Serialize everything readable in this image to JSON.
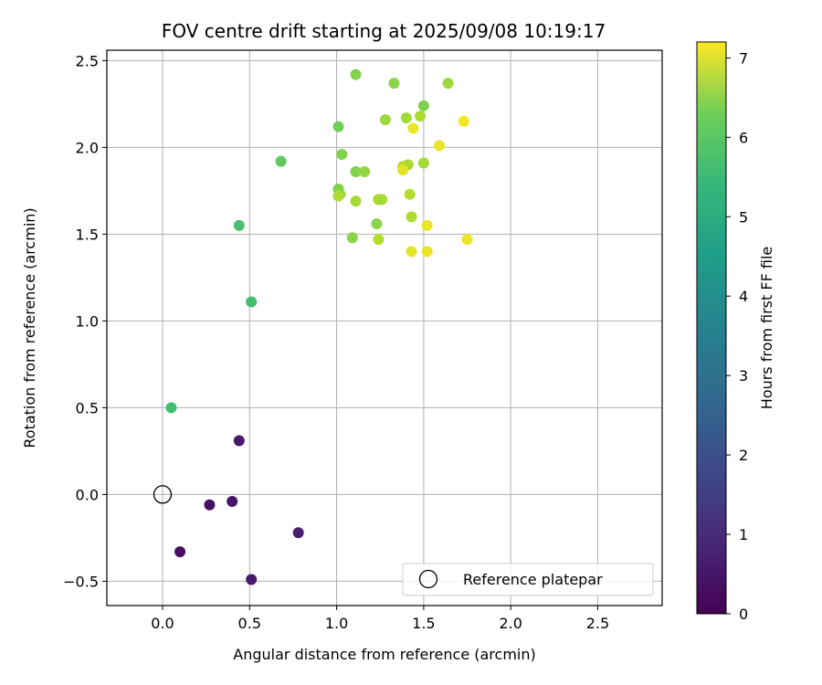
{
  "chart_data": {
    "type": "scatter",
    "title": "FOV centre drift starting at 2025/09/08 10:19:17",
    "xlabel": "Angular distance from reference (arcmin)",
    "ylabel": "Rotation from reference (arcmin)",
    "xlim": [
      -0.32,
      2.87
    ],
    "ylim": [
      -0.64,
      2.56
    ],
    "xticks": [
      0.0,
      0.5,
      1.0,
      1.5,
      2.0,
      2.5
    ],
    "xtick_labels": [
      "0.0",
      "0.5",
      "1.0",
      "1.5",
      "2.0",
      "2.5"
    ],
    "yticks": [
      -0.5,
      0.0,
      0.5,
      1.0,
      1.5,
      2.0,
      2.5
    ],
    "ytick_labels": [
      "−0.5",
      "0.0",
      "0.5",
      "1.0",
      "1.5",
      "2.0",
      "2.5"
    ],
    "grid": true,
    "legend": {
      "placement": "lower-right",
      "label": "Reference platepar"
    },
    "reference_point": {
      "x": 0.0,
      "y": 0.0
    },
    "colorbar": {
      "label": "Hours from first FF file",
      "colormap": "viridis",
      "range": [
        0,
        7.2
      ],
      "ticks": [
        0,
        1,
        2,
        3,
        4,
        5,
        6,
        7
      ],
      "tick_labels": [
        "0",
        "1",
        "2",
        "3",
        "4",
        "5",
        "6",
        "7"
      ]
    },
    "points": [
      {
        "x": 0.1,
        "y": -0.33,
        "c": 0.3
      },
      {
        "x": 0.27,
        "y": -0.06,
        "c": 0.3
      },
      {
        "x": 0.4,
        "y": -0.04,
        "c": 0.4
      },
      {
        "x": 0.51,
        "y": -0.49,
        "c": 0.5
      },
      {
        "x": 0.44,
        "y": 0.31,
        "c": 0.5
      },
      {
        "x": 0.78,
        "y": -0.22,
        "c": 0.6
      },
      {
        "x": 0.05,
        "y": 0.5,
        "c": 5.0
      },
      {
        "x": 0.51,
        "y": 1.11,
        "c": 5.0
      },
      {
        "x": 0.44,
        "y": 1.55,
        "c": 5.1
      },
      {
        "x": 0.68,
        "y": 1.92,
        "c": 5.4
      },
      {
        "x": 1.01,
        "y": 2.12,
        "c": 5.6
      },
      {
        "x": 1.11,
        "y": 2.42,
        "c": 5.8
      },
      {
        "x": 1.33,
        "y": 2.37,
        "c": 5.9
      },
      {
        "x": 1.64,
        "y": 2.37,
        "c": 6.1
      },
      {
        "x": 1.5,
        "y": 2.24,
        "c": 5.8
      },
      {
        "x": 1.03,
        "y": 1.96,
        "c": 5.8
      },
      {
        "x": 1.11,
        "y": 1.86,
        "c": 5.8
      },
      {
        "x": 1.16,
        "y": 1.86,
        "c": 6.0
      },
      {
        "x": 1.01,
        "y": 1.76,
        "c": 5.8
      },
      {
        "x": 1.02,
        "y": 1.73,
        "c": 5.9
      },
      {
        "x": 1.01,
        "y": 1.72,
        "c": 6.3
      },
      {
        "x": 1.11,
        "y": 1.69,
        "c": 6.2
      },
      {
        "x": 1.09,
        "y": 1.48,
        "c": 5.9
      },
      {
        "x": 1.23,
        "y": 1.56,
        "c": 5.9
      },
      {
        "x": 1.24,
        "y": 1.7,
        "c": 6.3
      },
      {
        "x": 1.26,
        "y": 1.7,
        "c": 6.2
      },
      {
        "x": 1.24,
        "y": 1.47,
        "c": 6.4
      },
      {
        "x": 1.28,
        "y": 2.16,
        "c": 6.1
      },
      {
        "x": 1.4,
        "y": 2.17,
        "c": 6.2
      },
      {
        "x": 1.48,
        "y": 2.18,
        "c": 6.3
      },
      {
        "x": 1.44,
        "y": 2.11,
        "c": 7.0
      },
      {
        "x": 1.38,
        "y": 1.89,
        "c": 6.4
      },
      {
        "x": 1.41,
        "y": 1.9,
        "c": 6.3
      },
      {
        "x": 1.38,
        "y": 1.87,
        "c": 6.9
      },
      {
        "x": 1.5,
        "y": 1.91,
        "c": 6.2
      },
      {
        "x": 1.42,
        "y": 1.73,
        "c": 6.4
      },
      {
        "x": 1.43,
        "y": 1.6,
        "c": 6.3
      },
      {
        "x": 1.52,
        "y": 1.55,
        "c": 7.0
      },
      {
        "x": 1.43,
        "y": 1.4,
        "c": 6.9
      },
      {
        "x": 1.52,
        "y": 1.4,
        "c": 7.0
      },
      {
        "x": 1.59,
        "y": 2.01,
        "c": 7.0
      },
      {
        "x": 1.73,
        "y": 2.15,
        "c": 7.1
      },
      {
        "x": 1.75,
        "y": 1.47,
        "c": 7.0
      }
    ]
  }
}
